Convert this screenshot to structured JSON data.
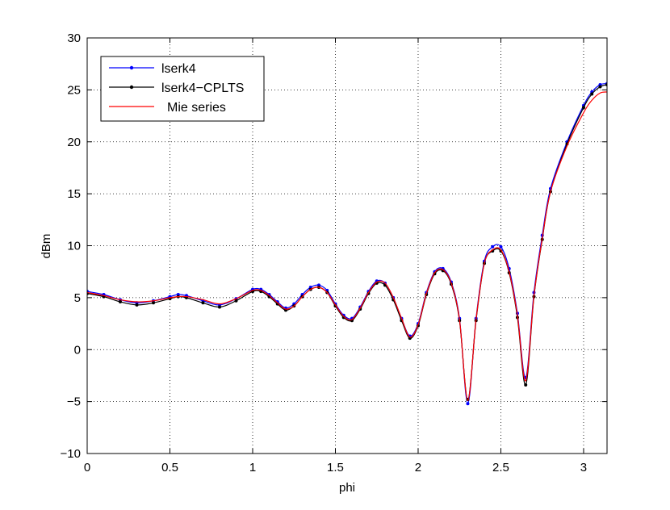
{
  "chart_data": {
    "type": "line",
    "title": "",
    "xlabel": "phi",
    "ylabel": "dBm",
    "xlim": [
      0,
      3.1416
    ],
    "ylim": [
      -10,
      30
    ],
    "grid": true,
    "legend_position": "top-left",
    "x_ticks": [
      0,
      0.5,
      1,
      1.5,
      2,
      2.5,
      3
    ],
    "x_tick_labels": [
      "0",
      "0.5",
      "1",
      "1.5",
      "2",
      "2.5",
      "3"
    ],
    "y_ticks": [
      -10,
      -5,
      0,
      5,
      10,
      15,
      20,
      25,
      30
    ],
    "y_tick_labels": [
      "−10",
      "−5",
      "0",
      "5",
      "10",
      "15",
      "20",
      "25",
      "30"
    ],
    "x": [
      0,
      0.1,
      0.2,
      0.3,
      0.4,
      0.5,
      0.55,
      0.6,
      0.7,
      0.8,
      0.9,
      1.0,
      1.05,
      1.1,
      1.15,
      1.2,
      1.25,
      1.3,
      1.35,
      1.4,
      1.45,
      1.5,
      1.55,
      1.6,
      1.65,
      1.7,
      1.75,
      1.8,
      1.85,
      1.9,
      1.95,
      2.0,
      2.05,
      2.1,
      2.15,
      2.2,
      2.25,
      2.3,
      2.35,
      2.4,
      2.45,
      2.5,
      2.55,
      2.6,
      2.65,
      2.7,
      2.75,
      2.8,
      2.9,
      3.0,
      3.05,
      3.1,
      3.1416
    ],
    "series": [
      {
        "name": "lserk4",
        "color": "#0000ff",
        "marker": "dot",
        "values": [
          5.6,
          5.3,
          4.8,
          4.5,
          4.7,
          5.1,
          5.3,
          5.2,
          4.7,
          4.3,
          4.9,
          5.8,
          5.8,
          5.3,
          4.6,
          4.0,
          4.4,
          5.3,
          6.0,
          6.2,
          5.7,
          4.4,
          3.3,
          3.0,
          4.1,
          5.6,
          6.6,
          6.4,
          5.0,
          3.0,
          1.3,
          2.5,
          5.5,
          7.5,
          7.8,
          6.5,
          3.0,
          -5.2,
          3.0,
          8.5,
          9.9,
          9.9,
          7.8,
          3.5,
          -2.7,
          5.5,
          11.0,
          15.5,
          20.0,
          23.5,
          24.8,
          25.5,
          25.6
        ]
      },
      {
        "name": "lserk4−CPLTS",
        "color": "#000000",
        "marker": "dot",
        "values": [
          5.4,
          5.1,
          4.6,
          4.3,
          4.5,
          4.9,
          5.1,
          5.0,
          4.5,
          4.1,
          4.7,
          5.6,
          5.6,
          5.1,
          4.4,
          3.8,
          4.2,
          5.1,
          5.8,
          6.0,
          5.5,
          4.2,
          3.1,
          2.8,
          3.9,
          5.4,
          6.4,
          6.2,
          4.8,
          2.8,
          1.1,
          2.3,
          5.3,
          7.3,
          7.6,
          6.3,
          2.8,
          -4.8,
          2.8,
          8.3,
          9.5,
          9.5,
          7.4,
          3.1,
          -3.4,
          5.1,
          10.6,
          15.2,
          19.8,
          23.3,
          24.6,
          25.3,
          25.5
        ]
      },
      {
        "name": "Mie series",
        "color": "#ff0000",
        "marker": "none",
        "values": [
          5.5,
          5.2,
          4.8,
          4.6,
          4.7,
          5.0,
          5.1,
          5.1,
          4.8,
          4.4,
          4.9,
          5.7,
          5.7,
          5.2,
          4.5,
          3.9,
          4.2,
          5.1,
          5.8,
          6.0,
          5.5,
          4.3,
          3.2,
          2.9,
          4.0,
          5.5,
          6.5,
          6.4,
          5.0,
          3.0,
          1.2,
          2.4,
          5.4,
          7.4,
          7.7,
          6.4,
          2.9,
          -4.9,
          2.9,
          8.3,
          9.6,
          9.6,
          7.5,
          3.3,
          -3.0,
          5.2,
          10.7,
          15.2,
          19.6,
          22.8,
          24.0,
          24.7,
          24.8
        ]
      }
    ]
  }
}
